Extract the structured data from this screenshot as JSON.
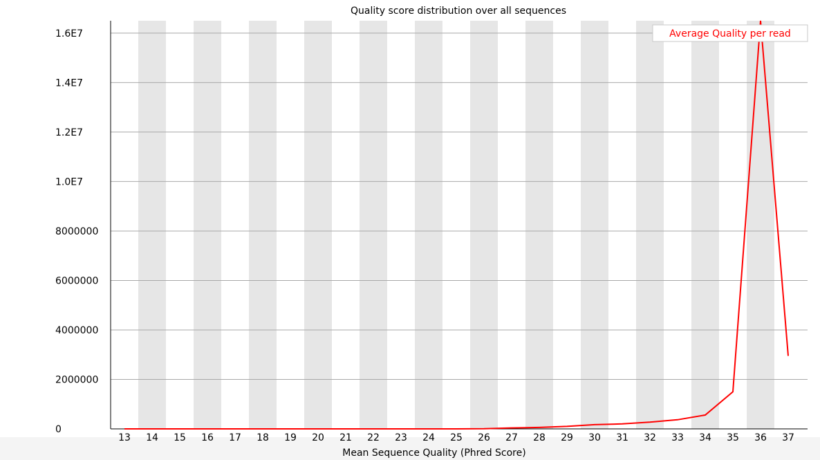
{
  "chart_data": {
    "type": "line",
    "title": "Quality score distribution over all sequences",
    "xlabel": "Mean Sequence Quality (Phred Score)",
    "ylabel": "",
    "categories": [
      13,
      14,
      15,
      16,
      17,
      18,
      19,
      20,
      21,
      22,
      23,
      24,
      25,
      26,
      27,
      28,
      29,
      30,
      31,
      32,
      33,
      34,
      35,
      36,
      37
    ],
    "series": [
      {
        "name": "Average Quality per read",
        "color": "#ff0000",
        "values": [
          0,
          0,
          0,
          0,
          0,
          0,
          0,
          0,
          0,
          0,
          0,
          0,
          0,
          5000,
          40000,
          60000,
          100000,
          170000,
          200000,
          270000,
          370000,
          560000,
          1500000,
          16500000,
          2950000
        ]
      }
    ],
    "ylim": [
      0,
      16500000
    ],
    "yticks": [
      "0",
      "2000000",
      "4000000",
      "6000000",
      "8000000",
      "1.0E7",
      "1.2E7",
      "1.4E7",
      "1.6E7"
    ],
    "grid": true,
    "legend": "top-right",
    "band_color": "#e6e6e6"
  }
}
